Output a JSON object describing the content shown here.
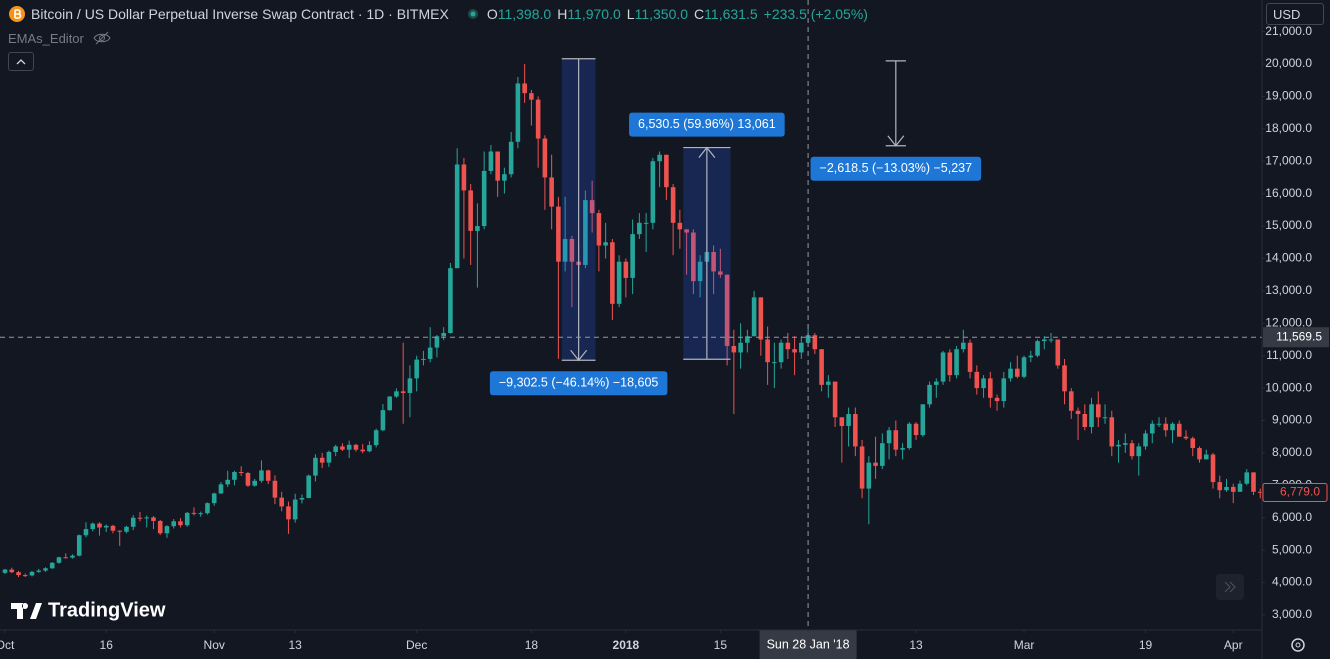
{
  "header": {
    "symbol": "Bitcoin / US Dollar Perpetual Inverse Swap Contract · 1D · BITMEX",
    "ohlc": [
      {
        "label": "O",
        "value": "11,398.0"
      },
      {
        "label": "H",
        "value": "11,970.0"
      },
      {
        "label": "L",
        "value": "11,350.0"
      },
      {
        "label": "C",
        "value": "11,631.5"
      }
    ],
    "change": "+233.5 (+2.05%)",
    "indicator": "EMAs_Editor",
    "currency": "USD",
    "logo": "TradingView"
  },
  "chart_data": {
    "type": "candlestick",
    "up_color": "#26a69a",
    "down_color": "#ef5350",
    "measure_color": "#2962ff",
    "label_color": "#1e77d6",
    "xlim": [
      "2017-09-30",
      "2018-04-06"
    ],
    "ylim": [
      2536,
      21975
    ],
    "yticks": [
      {
        "value": 3000,
        "label": "3,000.0"
      },
      {
        "value": 4000,
        "label": "4,000.0"
      },
      {
        "value": 5000,
        "label": "5,000.0"
      },
      {
        "value": 6000,
        "label": "6,000.0"
      },
      {
        "value": 7000,
        "label": "7,000.0"
      },
      {
        "value": 8000,
        "label": "8,000.0"
      },
      {
        "value": 9000,
        "label": "9,000.0"
      },
      {
        "value": 10000,
        "label": "10,000.0"
      },
      {
        "value": 11000,
        "label": "11,000.0"
      },
      {
        "value": 12000,
        "label": "12,000.0"
      },
      {
        "value": 13000,
        "label": "13,000.0"
      },
      {
        "value": 14000,
        "label": "14,000.0"
      },
      {
        "value": 15000,
        "label": "15,000.0"
      },
      {
        "value": 16000,
        "label": "16,000.0"
      },
      {
        "value": 17000,
        "label": "17,000.0"
      },
      {
        "value": 18000,
        "label": "18,000.0"
      },
      {
        "value": 19000,
        "label": "19,000.0"
      },
      {
        "value": 20000,
        "label": "20,000.0"
      },
      {
        "value": 21000,
        "label": "21,000.0"
      }
    ],
    "xticks": [
      {
        "value": "2017-10-01",
        "label": "Oct"
      },
      {
        "value": "2017-10-16",
        "label": "16"
      },
      {
        "value": "2017-11-01",
        "label": "Nov"
      },
      {
        "value": "2017-11-13",
        "label": "13"
      },
      {
        "value": "2017-12-01",
        "label": "Dec"
      },
      {
        "value": "2017-12-18",
        "label": "18"
      },
      {
        "value": "2018-01-01",
        "label": "2018"
      },
      {
        "value": "2018-01-15",
        "label": "15"
      },
      {
        "value": "2018-02-13",
        "label": "13"
      },
      {
        "value": "2018-03-01",
        "label": "Mar"
      },
      {
        "value": "2018-03-19",
        "label": "19"
      },
      {
        "value": "2018-04-01",
        "label": "Apr"
      }
    ],
    "x": [
      "2017-10-01",
      "2017-10-02",
      "2017-10-03",
      "2017-10-04",
      "2017-10-05",
      "2017-10-06",
      "2017-10-07",
      "2017-10-08",
      "2017-10-09",
      "2017-10-10",
      "2017-10-11",
      "2017-10-12",
      "2017-10-13",
      "2017-10-14",
      "2017-10-15",
      "2017-10-16",
      "2017-10-17",
      "2017-10-18",
      "2017-10-19",
      "2017-10-20",
      "2017-10-21",
      "2017-10-22",
      "2017-10-23",
      "2017-10-24",
      "2017-10-25",
      "2017-10-26",
      "2017-10-27",
      "2017-10-28",
      "2017-10-29",
      "2017-10-30",
      "2017-10-31",
      "2017-11-01",
      "2017-11-02",
      "2017-11-03",
      "2017-11-04",
      "2017-11-05",
      "2017-11-06",
      "2017-11-07",
      "2017-11-08",
      "2017-11-09",
      "2017-11-10",
      "2017-11-11",
      "2017-11-12",
      "2017-11-13",
      "2017-11-14",
      "2017-11-15",
      "2017-11-16",
      "2017-11-17",
      "2017-11-18",
      "2017-11-19",
      "2017-11-20",
      "2017-11-21",
      "2017-11-22",
      "2017-11-23",
      "2017-11-24",
      "2017-11-25",
      "2017-11-26",
      "2017-11-27",
      "2017-11-28",
      "2017-11-29",
      "2017-11-30",
      "2017-12-01",
      "2017-12-02",
      "2017-12-03",
      "2017-12-04",
      "2017-12-05",
      "2017-12-06",
      "2017-12-07",
      "2017-12-08",
      "2017-12-09",
      "2017-12-10",
      "2017-12-11",
      "2017-12-12",
      "2017-12-13",
      "2017-12-14",
      "2017-12-15",
      "2017-12-16",
      "2017-12-17",
      "2017-12-18",
      "2017-12-19",
      "2017-12-20",
      "2017-12-21",
      "2017-12-22",
      "2017-12-23",
      "2017-12-24",
      "2017-12-25",
      "2017-12-26",
      "2017-12-27",
      "2017-12-28",
      "2017-12-29",
      "2017-12-30",
      "2017-12-31",
      "2018-01-01",
      "2018-01-02",
      "2018-01-03",
      "2018-01-04",
      "2018-01-05",
      "2018-01-06",
      "2018-01-07",
      "2018-01-08",
      "2018-01-09",
      "2018-01-10",
      "2018-01-11",
      "2018-01-12",
      "2018-01-13",
      "2018-01-14",
      "2018-01-15",
      "2018-01-16",
      "2018-01-17",
      "2018-01-18",
      "2018-01-19",
      "2018-01-20",
      "2018-01-21",
      "2018-01-22",
      "2018-01-23",
      "2018-01-24",
      "2018-01-25",
      "2018-01-26",
      "2018-01-27",
      "2018-01-28",
      "2018-01-29",
      "2018-01-30",
      "2018-01-31",
      "2018-02-01",
      "2018-02-02",
      "2018-02-03",
      "2018-02-04",
      "2018-02-05",
      "2018-02-06",
      "2018-02-07",
      "2018-02-08",
      "2018-02-09",
      "2018-02-10",
      "2018-02-11",
      "2018-02-12",
      "2018-02-13",
      "2018-02-14",
      "2018-02-15",
      "2018-02-16",
      "2018-02-17",
      "2018-02-18",
      "2018-02-19",
      "2018-02-20",
      "2018-02-21",
      "2018-02-22",
      "2018-02-23",
      "2018-02-24",
      "2018-02-25",
      "2018-02-26",
      "2018-02-27",
      "2018-02-28",
      "2018-03-01",
      "2018-03-02",
      "2018-03-03",
      "2018-03-04",
      "2018-03-05",
      "2018-03-06",
      "2018-03-07",
      "2018-03-08",
      "2018-03-09",
      "2018-03-10",
      "2018-03-11",
      "2018-03-12",
      "2018-03-13",
      "2018-03-14",
      "2018-03-15",
      "2018-03-16",
      "2018-03-17",
      "2018-03-18",
      "2018-03-19",
      "2018-03-20",
      "2018-03-21",
      "2018-03-22",
      "2018-03-23",
      "2018-03-24",
      "2018-03-25",
      "2018-03-26",
      "2018-03-27",
      "2018-03-28",
      "2018-03-29",
      "2018-03-30",
      "2018-03-31",
      "2018-04-01",
      "2018-04-02",
      "2018-04-03",
      "2018-04-04",
      "2018-04-05"
    ],
    "open": [
      4300,
      4400,
      4320,
      4230,
      4220,
      4330,
      4370,
      4440,
      4610,
      4780,
      4770,
      4830,
      5460,
      5650,
      5820,
      5700,
      5750,
      5600,
      5570,
      5720,
      6000,
      5990,
      6010,
      5900,
      5520,
      5740,
      5890,
      5770,
      6150,
      6130,
      6140,
      6450,
      6750,
      7030,
      7170,
      7410,
      7380,
      6990,
      7140,
      7460,
      7140,
      6620,
      6350,
      5950,
      6560,
      6610,
      7300,
      7850,
      7700,
      8030,
      8200,
      8100,
      8250,
      8100,
      8050,
      8240,
      8700,
      9320,
      9740,
      9900,
      9850,
      10300,
      10880,
      10900,
      11250,
      11600,
      11700,
      13700,
      16900,
      16100,
      14850,
      15000,
      16700,
      17300,
      16400,
      16600,
      17600,
      19400,
      19100,
      18900,
      17700,
      16500,
      15600,
      13900,
      14600,
      13900,
      13800,
      15800,
      15400,
      14400,
      14500,
      12600,
      13900,
      13400,
      14750,
      15100,
      15100,
      17000,
      17200,
      16200,
      15100,
      14900,
      14800,
      13300,
      13900,
      14200,
      13600,
      13500,
      11300,
      11100,
      11400,
      11600,
      12800,
      11500,
      10800,
      10800,
      11400,
      11200,
      11100,
      11398,
      11631.5,
      11200,
      10100,
      10200,
      9100,
      8830,
      9200,
      8200,
      6900,
      7700,
      7600,
      8300,
      8700,
      8100,
      8150,
      8900,
      8550,
      9500,
      10100,
      10200,
      11100,
      10400,
      11200,
      11400,
      10500,
      10000,
      10300,
      9700,
      9600,
      10300,
      10600,
      10350,
      10950,
      11000,
      11450,
      11500,
      11500,
      10700,
      9900,
      9300,
      9200,
      8800,
      9500,
      9100,
      9100,
      8200,
      8250,
      8300,
      7900,
      8200,
      8600,
      8900,
      8900,
      8700,
      8900,
      8500,
      8450,
      8150,
      7800,
      7950,
      7100,
      6850,
      6950,
      6800,
      7050,
      7400,
      6800
    ],
    "high": [
      4420,
      4460,
      4360,
      4280,
      4360,
      4420,
      4470,
      4630,
      4800,
      4900,
      4870,
      5480,
      5860,
      5850,
      5860,
      5790,
      5780,
      5610,
      5750,
      6080,
      6180,
      6070,
      6050,
      5930,
      5770,
      5960,
      5990,
      6180,
      6320,
      6190,
      6470,
      6770,
      7100,
      7450,
      7450,
      7590,
      7410,
      7200,
      7770,
      7480,
      7310,
      6800,
      6500,
      6740,
      6720,
      7330,
      7960,
      8000,
      8070,
      8250,
      8300,
      8380,
      8280,
      8270,
      8360,
      8750,
      9510,
      9750,
      9990,
      11400,
      10700,
      11000,
      11150,
      11880,
      11640,
      11880,
      13860,
      17400,
      17100,
      16300,
      15700,
      17300,
      17500,
      17300,
      16800,
      17900,
      19600,
      20000,
      19200,
      19000,
      17800,
      17200,
      15900,
      15900,
      14700,
      14400,
      16100,
      16400,
      15500,
      15100,
      14600,
      14100,
      14000,
      15200,
      15400,
      15400,
      17100,
      17300,
      17200,
      16300,
      15500,
      14900,
      14900,
      14100,
      14600,
      14400,
      14300,
      13500,
      11800,
      12000,
      11800,
      13000,
      12800,
      11900,
      11400,
      11500,
      11700,
      11600,
      11600,
      11970,
      11700,
      11200,
      10400,
      10200,
      9100,
      9400,
      9400,
      8400,
      7900,
      8500,
      8600,
      8800,
      9000,
      8300,
      8950,
      8950,
      9500,
      10200,
      10300,
      11150,
      11200,
      11300,
      11800,
      11500,
      10700,
      10400,
      10500,
      9800,
      10500,
      10800,
      11000,
      11000,
      11150,
      11500,
      11600,
      11700,
      11500,
      10900,
      10000,
      9400,
      9500,
      9700,
      9900,
      9500,
      9300,
      8400,
      8600,
      8400,
      8300,
      8700,
      9000,
      9100,
      9100,
      8950,
      9000,
      8700,
      8500,
      8200,
      8100,
      8000,
      7300,
      7200,
      7050,
      7150,
      7500,
      7400,
      6900
    ],
    "low": [
      4260,
      4290,
      4170,
      4170,
      4190,
      4300,
      4330,
      4420,
      4580,
      4740,
      4740,
      4810,
      5400,
      5580,
      5450,
      5560,
      5520,
      5130,
      5520,
      5620,
      5890,
      5700,
      5650,
      5470,
      5380,
      5670,
      5700,
      5720,
      6070,
      6030,
      6100,
      6370,
      6730,
      6950,
      7000,
      7290,
      6950,
      6960,
      7080,
      7040,
      6420,
      6200,
      5500,
      5850,
      6440,
      6600,
      7120,
      7530,
      7570,
      7900,
      8060,
      7840,
      8040,
      7990,
      8020,
      8170,
      8670,
      9300,
      9700,
      8900,
      9100,
      9900,
      10700,
      10800,
      10950,
      11480,
      11680,
      13700,
      14000,
      13800,
      13100,
      14900,
      16600,
      15900,
      16000,
      16500,
      17400,
      18800,
      18100,
      16800,
      15500,
      14900,
      10900,
      13600,
      12500,
      13300,
      13700,
      14800,
      13600,
      14000,
      12100,
      12500,
      12800,
      12900,
      14600,
      14200,
      14900,
      16200,
      15800,
      14100,
      14300,
      13500,
      12900,
      12800,
      13800,
      12900,
      13400,
      10700,
      9200,
      10600,
      11100,
      11600,
      11000,
      10100,
      10000,
      10600,
      10900,
      10400,
      10900,
      11350,
      11050,
      9900,
      9700,
      8800,
      7700,
      8200,
      7900,
      6600,
      5800,
      7200,
      7500,
      7800,
      7900,
      7800,
      8100,
      8400,
      8500,
      9400,
      9700,
      10100,
      10200,
      10300,
      11100,
      10300,
      9800,
      9700,
      9400,
      9300,
      9400,
      10200,
      10300,
      10300,
      10800,
      10950,
      11200,
      11400,
      10600,
      9500,
      9050,
      8400,
      8700,
      8600,
      8800,
      8900,
      7900,
      7700,
      8000,
      7800,
      7300,
      8100,
      8300,
      8800,
      8500,
      8300,
      8500,
      8400,
      7900,
      7700,
      7800,
      6900,
      6600,
      6800,
      6450,
      6800,
      7000,
      6700,
      6600
    ],
    "close": [
      4400,
      4320,
      4230,
      4220,
      4330,
      4370,
      4440,
      4610,
      4780,
      4770,
      4830,
      5460,
      5650,
      5820,
      5700,
      5750,
      5600,
      5570,
      5720,
      6000,
      5990,
      6010,
      5900,
      5520,
      5740,
      5890,
      5770,
      6150,
      6130,
      6140,
      6450,
      6750,
      7030,
      7170,
      7410,
      7380,
      6990,
      7140,
      7460,
      7140,
      6620,
      6350,
      5950,
      6560,
      6610,
      7300,
      7850,
      7700,
      8030,
      8200,
      8100,
      8250,
      8100,
      8050,
      8240,
      8700,
      9320,
      9740,
      9900,
      9850,
      10300,
      10880,
      10900,
      11250,
      11600,
      11700,
      13700,
      16900,
      16100,
      14850,
      15000,
      16700,
      17300,
      16400,
      16600,
      17600,
      19400,
      19100,
      18900,
      17700,
      16500,
      15600,
      13900,
      14600,
      13900,
      13800,
      15800,
      15400,
      14400,
      14500,
      12600,
      13900,
      13400,
      14750,
      15100,
      15100,
      17000,
      17200,
      16200,
      15100,
      14900,
      14800,
      13300,
      13900,
      14200,
      13600,
      13500,
      11300,
      11100,
      11400,
      11600,
      12800,
      11500,
      10800,
      10800,
      11400,
      11200,
      11100,
      11398,
      11631.5,
      11200,
      10100,
      10200,
      9100,
      8830,
      9200,
      8200,
      6900,
      7700,
      7600,
      8300,
      8700,
      8100,
      8150,
      8900,
      8550,
      9500,
      10100,
      10200,
      11100,
      10400,
      11200,
      11400,
      10500,
      10000,
      10300,
      9700,
      9600,
      10300,
      10600,
      10350,
      10950,
      11000,
      11450,
      11500,
      11500,
      10700,
      9900,
      9300,
      9200,
      8800,
      9500,
      9100,
      9100,
      8200,
      8250,
      8300,
      7900,
      8200,
      8600,
      8900,
      8900,
      8700,
      8900,
      8500,
      8450,
      8150,
      7800,
      7950,
      7100,
      6850,
      6950,
      6800,
      7050,
      7400,
      6800,
      6779
    ],
    "measures": [
      {
        "x": [
          "2017-12-23",
          "2017-12-27"
        ],
        "from": 20161.5,
        "to": 10859,
        "label": "−9,302.5 (−46.14%) −18,605",
        "filled": true
      },
      {
        "x": [
          "2018-01-10",
          "2018-01-16"
        ],
        "from": 10891,
        "to": 17421.5,
        "label": "6,530.5 (59.96%) 13,061",
        "filled": true
      },
      {
        "x": [
          "2018-02-09",
          "2018-02-11"
        ],
        "from": 20096,
        "to": 17477.5,
        "label": "−2,618.5 (−13.03%) −5,237",
        "filled": false
      }
    ],
    "crosshair": {
      "x": "2018-01-28",
      "x_label": "Sun 28 Jan '18",
      "y": {
        "value": 11569.5,
        "label": "11,569.5"
      }
    },
    "last_price": {
      "value": 6779,
      "label": "6,779.0"
    }
  }
}
